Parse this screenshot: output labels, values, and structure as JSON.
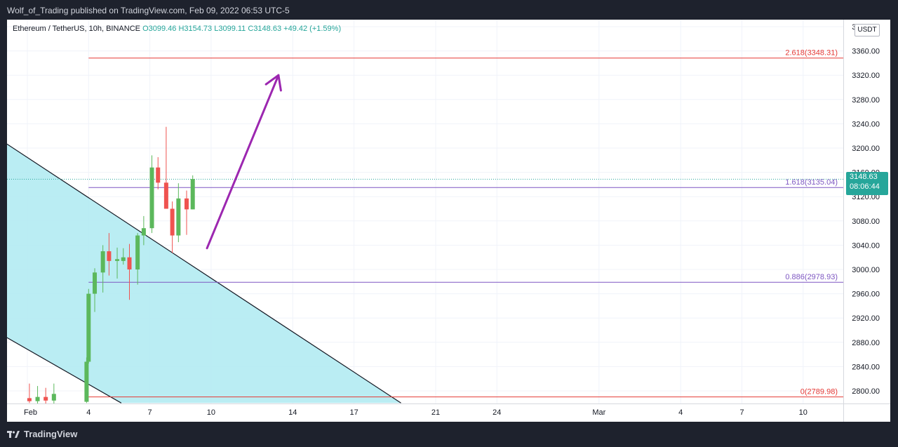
{
  "header": {
    "publisher_line": "Wolf_of_Trading published on TradingView.com, Feb 09, 2022 06:53 UTC-5"
  },
  "footer": {
    "brand": "TradingView",
    "logo_icon": "tradingview-logo-icon"
  },
  "legend": {
    "symbol": "Ethereum / TetherUS, 10h, BINANCE",
    "open": "O3099.46",
    "high": "H3154.73",
    "low": "L3099.11",
    "close": "C3148.63",
    "change": "+49.42 (+1.59%)"
  },
  "price_axis": {
    "unit_button": "USDT",
    "last_price": "3148.63",
    "countdown": "08:06:44"
  },
  "colors": {
    "up": "#26a69a",
    "up_body": "#5cb85c",
    "down": "#ef5350",
    "channel_fill": "#b2ebf2",
    "fib_red": "#e53935",
    "fib_purple": "#7e57c2",
    "arrow": "#9c27b0"
  },
  "chart_data": {
    "type": "candlestick",
    "symbol": "Ethereum / TetherUS",
    "timeframe": "10h",
    "exchange": "BINANCE",
    "y_axis": {
      "range": [
        2780,
        3400
      ],
      "ticks": [
        "3400.00",
        "3360.00",
        "3320.00",
        "3280.00",
        "3240.00",
        "3200.00",
        "3160.00",
        "3120.00",
        "3080.00",
        "3040.00",
        "3000.00",
        "2960.00",
        "2920.00",
        "2880.00",
        "2840.00",
        "2800.00"
      ]
    },
    "x_axis": {
      "labels": [
        {
          "label": "Feb",
          "day": 1
        },
        {
          "label": "4",
          "day": 4
        },
        {
          "label": "7",
          "day": 7
        },
        {
          "label": "10",
          "day": 10
        },
        {
          "label": "14",
          "day": 14
        },
        {
          "label": "17",
          "day": 17
        },
        {
          "label": "21",
          "day": 21
        },
        {
          "label": "24",
          "day": 24
        },
        {
          "label": "Mar",
          "day": 29
        },
        {
          "label": "4",
          "day": 33
        },
        {
          "label": "7",
          "day": 36
        },
        {
          "label": "10",
          "day": 39
        }
      ]
    },
    "candles": [
      {
        "t": 1.1,
        "o": 2788,
        "h": 2812,
        "l": 2780,
        "c": 2783
      },
      {
        "t": 1.5,
        "o": 2783,
        "h": 2808,
        "l": 2778,
        "c": 2790
      },
      {
        "t": 1.9,
        "o": 2790,
        "h": 2805,
        "l": 2770,
        "c": 2784
      },
      {
        "t": 2.3,
        "o": 2784,
        "h": 2812,
        "l": 2775,
        "c": 2795
      },
      {
        "t": 3.9,
        "o": 2782,
        "h": 2855,
        "l": 2780,
        "c": 2848
      },
      {
        "t": 4.0,
        "o": 2848,
        "h": 2968,
        "l": 2845,
        "c": 2960
      },
      {
        "t": 4.3,
        "o": 2960,
        "h": 3002,
        "l": 2930,
        "c": 2995
      },
      {
        "t": 4.7,
        "o": 2995,
        "h": 3040,
        "l": 2962,
        "c": 3030
      },
      {
        "t": 5.0,
        "o": 3030,
        "h": 3060,
        "l": 2990,
        "c": 3014
      },
      {
        "t": 5.4,
        "o": 3014,
        "h": 3036,
        "l": 2985,
        "c": 3017
      },
      {
        "t": 5.7,
        "o": 3014,
        "h": 3035,
        "l": 3008,
        "c": 3020
      },
      {
        "t": 6.0,
        "o": 3020,
        "h": 3042,
        "l": 2950,
        "c": 3000
      },
      {
        "t": 6.4,
        "o": 3000,
        "h": 3060,
        "l": 2975,
        "c": 3056
      },
      {
        "t": 6.7,
        "o": 3056,
        "h": 3088,
        "l": 3040,
        "c": 3068
      },
      {
        "t": 7.1,
        "o": 3068,
        "h": 3188,
        "l": 3060,
        "c": 3168
      },
      {
        "t": 7.4,
        "o": 3168,
        "h": 3185,
        "l": 3132,
        "c": 3143
      },
      {
        "t": 7.8,
        "o": 3143,
        "h": 3235,
        "l": 3100,
        "c": 3100
      },
      {
        "t": 8.1,
        "o": 3100,
        "h": 3112,
        "l": 3027,
        "c": 3056
      },
      {
        "t": 8.4,
        "o": 3056,
        "h": 3142,
        "l": 3045,
        "c": 3117
      },
      {
        "t": 8.8,
        "o": 3117,
        "h": 3130,
        "l": 3057,
        "c": 3099
      },
      {
        "t": 9.1,
        "o": 3099,
        "h": 3155,
        "l": 3099,
        "c": 3149
      }
    ],
    "fib_levels": [
      {
        "label": "2.618(3348.31)",
        "value": 3348.31,
        "color": "#e53935"
      },
      {
        "label": "1.618(3135.04)",
        "value": 3135.04,
        "color": "#7e57c2"
      },
      {
        "label": "0.886(2978.93)",
        "value": 2978.93,
        "color": "#7e57c2"
      },
      {
        "label": "0(2789.98)",
        "value": 2789.98,
        "color": "#e53935"
      }
    ],
    "fib_start_day": 4.0,
    "last_price": 3148.63,
    "channel": {
      "upper": [
        {
          "t": -3.5,
          "p": 3284
        },
        {
          "t": 19.3,
          "p": 2780
        }
      ],
      "lower": [
        {
          "t": -3.5,
          "p": 2955
        },
        {
          "t": 5.6,
          "p": 2780
        }
      ]
    },
    "arrow": {
      "from": {
        "t": 9.8,
        "p": 3035
      },
      "to": {
        "t": 13.3,
        "p": 3320
      }
    }
  }
}
